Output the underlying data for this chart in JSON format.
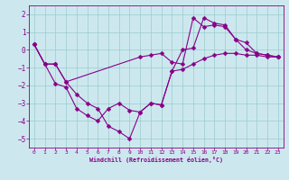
{
  "xlabel": "Windchill (Refroidissement éolien,°C)",
  "bg_color": "#cce8ee",
  "line_color": "#880088",
  "grid_color": "#99cccc",
  "ylim": [
    -5.5,
    2.5
  ],
  "xlim": [
    -0.5,
    23.5
  ],
  "yticks": [
    -5,
    -4,
    -3,
    -2,
    -1,
    0,
    1,
    2
  ],
  "xticks": [
    0,
    1,
    2,
    3,
    4,
    5,
    6,
    7,
    8,
    9,
    10,
    11,
    12,
    13,
    14,
    15,
    16,
    17,
    18,
    19,
    20,
    21,
    22,
    23
  ],
  "line1_x": [
    0,
    1,
    2,
    3,
    4,
    5,
    6,
    7,
    8,
    9,
    10,
    11,
    12,
    13,
    14,
    15,
    16,
    17,
    18,
    19,
    20,
    21,
    22,
    23
  ],
  "line1_y": [
    0.3,
    -0.8,
    -0.8,
    -1.8,
    -2.5,
    -3.0,
    -3.3,
    -4.3,
    -4.6,
    -5.0,
    -3.5,
    -3.0,
    -3.1,
    -1.2,
    0.0,
    0.1,
    1.8,
    1.5,
    1.4,
    0.6,
    0.0,
    -0.2,
    -0.3,
    -0.4
  ],
  "line2_x": [
    0,
    1,
    2,
    3,
    10,
    11,
    12,
    13,
    14,
    15,
    16,
    17,
    18,
    19,
    20,
    21,
    22,
    23
  ],
  "line2_y": [
    0.3,
    -0.8,
    -0.8,
    -1.8,
    -0.4,
    -0.3,
    -0.2,
    -0.7,
    -0.8,
    1.8,
    1.3,
    1.4,
    1.3,
    0.6,
    0.4,
    -0.2,
    -0.3,
    -0.4
  ],
  "line3_x": [
    0,
    1,
    2,
    3,
    4,
    5,
    6,
    7,
    8,
    9,
    10,
    11,
    12,
    13,
    14,
    15,
    16,
    17,
    18,
    19,
    20,
    21,
    22,
    23
  ],
  "line3_y": [
    0.3,
    -0.8,
    -1.9,
    -2.1,
    -3.3,
    -3.7,
    -4.0,
    -3.3,
    -3.0,
    -3.4,
    -3.5,
    -3.0,
    -3.1,
    -1.2,
    -1.1,
    -0.8,
    -0.5,
    -0.3,
    -0.2,
    -0.2,
    -0.3,
    -0.3,
    -0.4,
    -0.4
  ]
}
